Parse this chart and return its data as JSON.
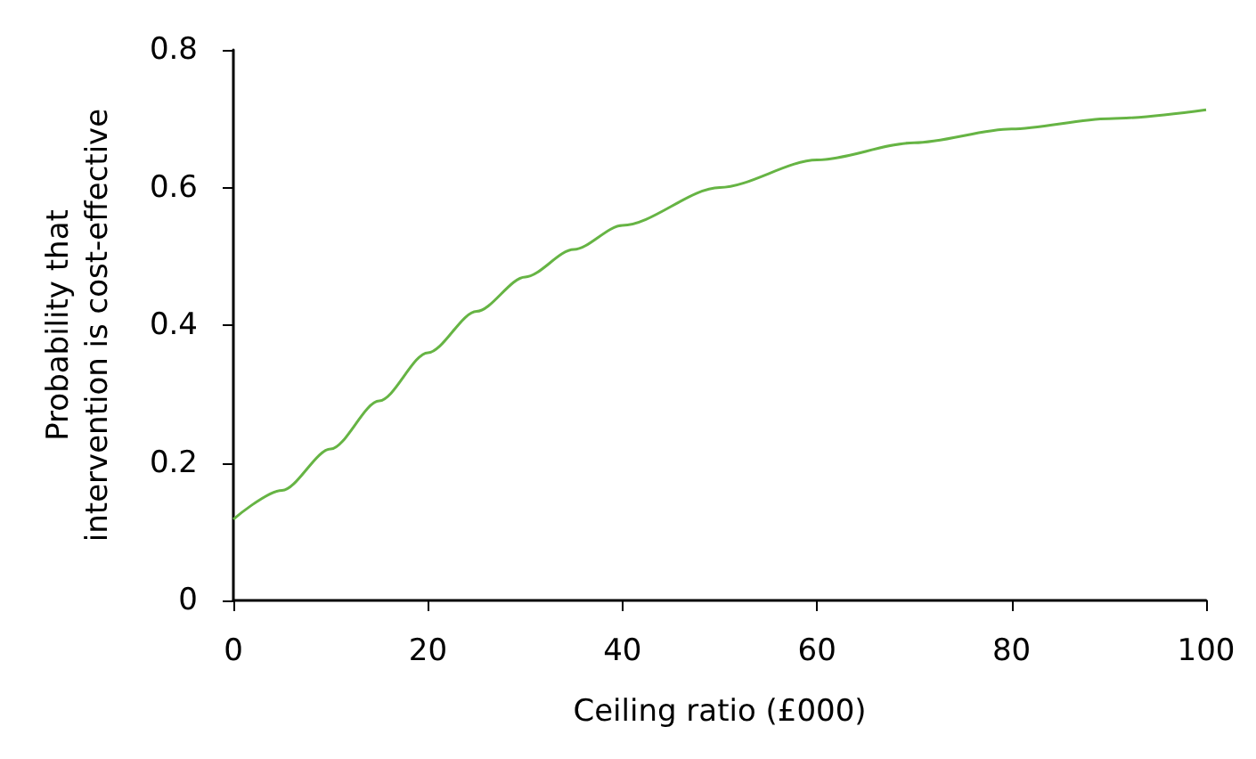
{
  "chart_data": {
    "type": "line",
    "xlabel": "Ceiling ratio (£000)",
    "ylabel": "Probability that\nintervention is cost-effective",
    "x": [
      0,
      5,
      10,
      15,
      20,
      25,
      30,
      35,
      40,
      50,
      60,
      70,
      80,
      90,
      100
    ],
    "series": [
      {
        "color": "#66b444",
        "values": [
          0.118,
          0.16,
          0.22,
          0.29,
          0.36,
          0.42,
          0.47,
          0.51,
          0.545,
          0.6,
          0.64,
          0.665,
          0.685,
          0.7,
          0.713
        ]
      }
    ],
    "xlim": [
      0,
      100
    ],
    "xticks": [
      0,
      20,
      40,
      60,
      80,
      100
    ],
    "ylim": [
      0,
      0.8
    ],
    "yticks": [
      0,
      0.2,
      0.4,
      0.6,
      0.8
    ],
    "grid": false,
    "marker": "none",
    "line_style": "solid"
  }
}
